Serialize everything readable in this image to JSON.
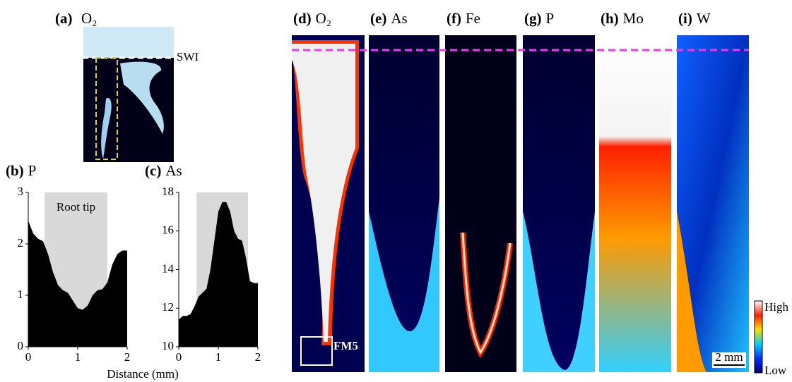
{
  "panels": [
    {
      "label": "(a)",
      "title": "O₂",
      "note": "SWI"
    },
    {
      "label": "(d)",
      "title": "O₂",
      "note": "FM5"
    },
    {
      "label": "(e)",
      "title": "As"
    },
    {
      "label": "(f)",
      "title": "Fe"
    },
    {
      "label": "(g)",
      "title": "P"
    },
    {
      "label": "(h)",
      "title": "Mo"
    },
    {
      "label": "(i)",
      "title": "W"
    }
  ],
  "colorbar": {
    "high": "High",
    "low": "Low"
  },
  "scale_bar": "2 mm",
  "shared_xlabel": "Distance (mm)",
  "chart_data": [
    {
      "type": "area",
      "label": "(b)",
      "title": "P",
      "annotation": "Root tip",
      "shade": [
        0.33,
        1.6
      ],
      "x": [
        0,
        0.1,
        0.2,
        0.3,
        0.4,
        0.5,
        0.6,
        0.7,
        0.8,
        0.9,
        1.0,
        1.1,
        1.2,
        1.3,
        1.4,
        1.5,
        1.6,
        1.7,
        1.8,
        1.9,
        2.0
      ],
      "values": [
        2.45,
        2.2,
        2.1,
        2.05,
        1.8,
        1.45,
        1.2,
        1.1,
        1.05,
        0.9,
        0.75,
        0.72,
        0.8,
        1.0,
        1.1,
        1.12,
        1.25,
        1.6,
        1.8,
        1.87,
        1.87
      ],
      "color": "#000000",
      "xlim": [
        0,
        2
      ],
      "xticks": [
        0,
        1,
        2
      ],
      "ylim": [
        0,
        3
      ],
      "yticks": [
        0,
        1,
        2,
        3
      ]
    },
    {
      "type": "area",
      "label": "(c)",
      "title": "As",
      "shade": [
        0.45,
        1.75
      ],
      "x": [
        0,
        0.1,
        0.2,
        0.3,
        0.4,
        0.5,
        0.6,
        0.7,
        0.8,
        0.9,
        1.0,
        1.1,
        1.2,
        1.3,
        1.4,
        1.5,
        1.6,
        1.7,
        1.8,
        1.9,
        2.0
      ],
      "values": [
        11.4,
        11.6,
        11.6,
        11.7,
        12.1,
        12.6,
        12.8,
        13.0,
        14.0,
        15.5,
        17.0,
        17.5,
        17.5,
        17.0,
        16.0,
        15.6,
        15.5,
        14.6,
        13.4,
        13.3,
        13.3
      ],
      "color": "#000000",
      "xlim": [
        0,
        2
      ],
      "xticks": [
        0,
        1,
        2
      ],
      "ylim": [
        10,
        18
      ],
      "yticks": [
        10,
        12,
        14,
        16,
        18
      ]
    }
  ]
}
